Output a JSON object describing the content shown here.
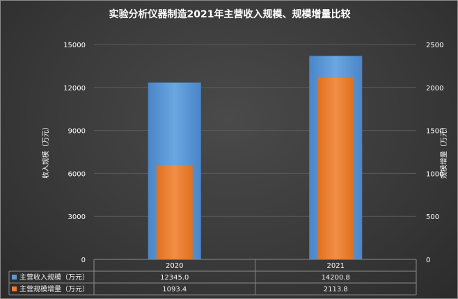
{
  "chart_data": {
    "type": "bar",
    "title": "实验分析仪器制造2021年主营收入规模、规模增量比较",
    "categories": [
      "2020",
      "2021"
    ],
    "series": [
      {
        "name": "主营收入规模（万元）",
        "axis": "left",
        "values": [
          12345.0,
          14200.8
        ],
        "labels": [
          "12345.0",
          "14200.8"
        ],
        "color": "#5b9bd5"
      },
      {
        "name": "主营规模增量（万元）",
        "axis": "right",
        "values": [
          1093.4,
          2113.8
        ],
        "labels": [
          "1093.4",
          "2113.8"
        ],
        "color": "#ed7d31"
      }
    ],
    "ylabel_left": "收入规模（万元）",
    "ylabel_right": "规模增量（万元）",
    "ylim_left": [
      0,
      15000
    ],
    "yticks_left": [
      0,
      3000,
      6000,
      9000,
      12000,
      15000
    ],
    "ylim_right": [
      0,
      2500
    ],
    "yticks_right": [
      0,
      500,
      1000,
      1500,
      2000,
      2500
    ],
    "grid": true,
    "legend": "data-table"
  }
}
